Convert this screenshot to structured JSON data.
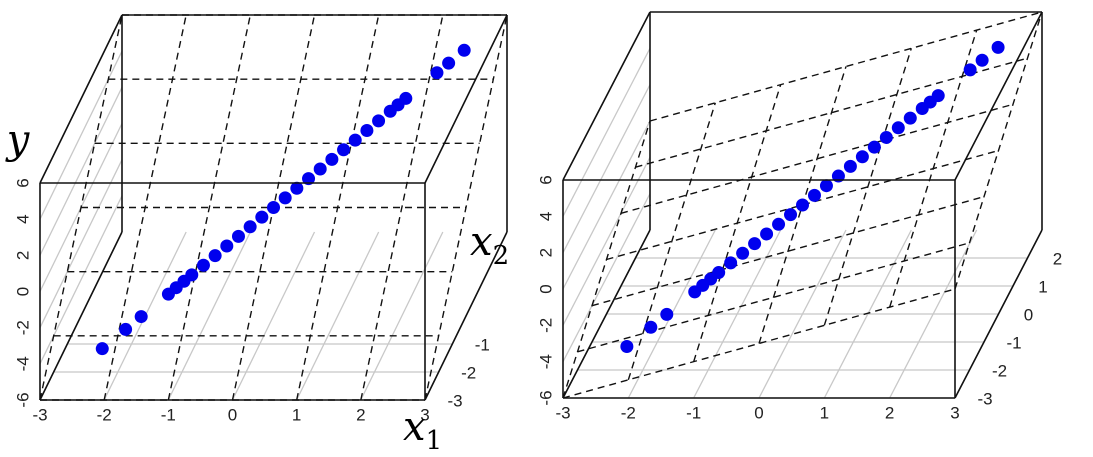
{
  "chart_data": [
    {
      "type": "scatter3d",
      "ylabel": "y",
      "x2label": "x",
      "x2label_sub": "2",
      "x1label": "x",
      "x1label_sub": "1",
      "color": "#0000ee",
      "x1lim": [
        -3,
        3
      ],
      "x2lim": [
        -3,
        3
      ],
      "ylim": [
        -6,
        6
      ],
      "x1ticks": [
        -3,
        -2,
        -1,
        0,
        1,
        2,
        3
      ],
      "x2ticks": [
        -3,
        -2,
        -1
      ],
      "yticks": [
        -6,
        -4,
        -2,
        0,
        2,
        4,
        6
      ],
      "plane": {
        "coef_x1": 0,
        "coef_x2": 2
      },
      "points": {
        "x1": [
          -2.2,
          -1.9,
          -1.7,
          -1.35,
          -1.25,
          -1.15,
          -1.05,
          -0.9,
          -0.75,
          -0.6,
          -0.45,
          -0.3,
          -0.15,
          0,
          0.15,
          0.3,
          0.45,
          0.6,
          0.75,
          0.9,
          1.05,
          1.2,
          1.35,
          1.5,
          1.6,
          1.7,
          2.1,
          2.25,
          2.45
        ],
        "x2": [
          -2.2,
          -1.9,
          -1.7,
          -1.35,
          -1.25,
          -1.15,
          -1.05,
          -0.9,
          -0.75,
          -0.6,
          -0.45,
          -0.3,
          -0.15,
          0,
          0.15,
          0.3,
          0.45,
          0.6,
          0.75,
          0.9,
          1.05,
          1.2,
          1.35,
          1.5,
          1.6,
          1.7,
          2.1,
          2.25,
          2.45
        ],
        "y": [
          -4.4,
          -3.8,
          -3.4,
          -2.7,
          -2.5,
          -2.3,
          -2.1,
          -1.8,
          -1.5,
          -1.2,
          -0.9,
          -0.6,
          -0.3,
          0,
          0.3,
          0.6,
          0.9,
          1.2,
          1.5,
          1.8,
          2.1,
          2.4,
          2.7,
          3,
          3.2,
          3.4,
          4.2,
          4.5,
          4.9
        ]
      }
    },
    {
      "type": "scatter3d",
      "color": "#0000ee",
      "x1lim": [
        -3,
        3
      ],
      "x2lim": [
        -3,
        3
      ],
      "ylim": [
        -6,
        6
      ],
      "x1ticks": [
        -3,
        -2,
        -1,
        0,
        1,
        2,
        3
      ],
      "x2ticks": [
        -3,
        -2,
        -1,
        0,
        1,
        2
      ],
      "yticks": [
        -6,
        -4,
        -2,
        0,
        2,
        4,
        6
      ],
      "plane": {
        "coef_x1": 1,
        "coef_x2": 1
      },
      "points": {
        "x1": [
          -2.2,
          -1.9,
          -1.7,
          -1.35,
          -1.25,
          -1.15,
          -1.05,
          -0.9,
          -0.75,
          -0.6,
          -0.45,
          -0.3,
          -0.15,
          0,
          0.15,
          0.3,
          0.45,
          0.6,
          0.75,
          0.9,
          1.05,
          1.2,
          1.35,
          1.5,
          1.6,
          1.7,
          2.1,
          2.25,
          2.45
        ],
        "x2": [
          -2.2,
          -1.9,
          -1.7,
          -1.35,
          -1.25,
          -1.15,
          -1.05,
          -0.9,
          -0.75,
          -0.6,
          -0.45,
          -0.3,
          -0.15,
          0,
          0.15,
          0.3,
          0.45,
          0.6,
          0.75,
          0.9,
          1.05,
          1.2,
          1.35,
          1.5,
          1.6,
          1.7,
          2.1,
          2.25,
          2.45
        ],
        "y": [
          -4.4,
          -3.8,
          -3.4,
          -2.7,
          -2.5,
          -2.3,
          -2.1,
          -1.8,
          -1.5,
          -1.2,
          -0.9,
          -0.6,
          -0.3,
          0,
          0.3,
          0.6,
          0.9,
          1.2,
          1.5,
          1.8,
          2.1,
          2.4,
          2.7,
          3,
          3.2,
          3.4,
          4.2,
          4.5,
          4.9
        ]
      }
    }
  ]
}
